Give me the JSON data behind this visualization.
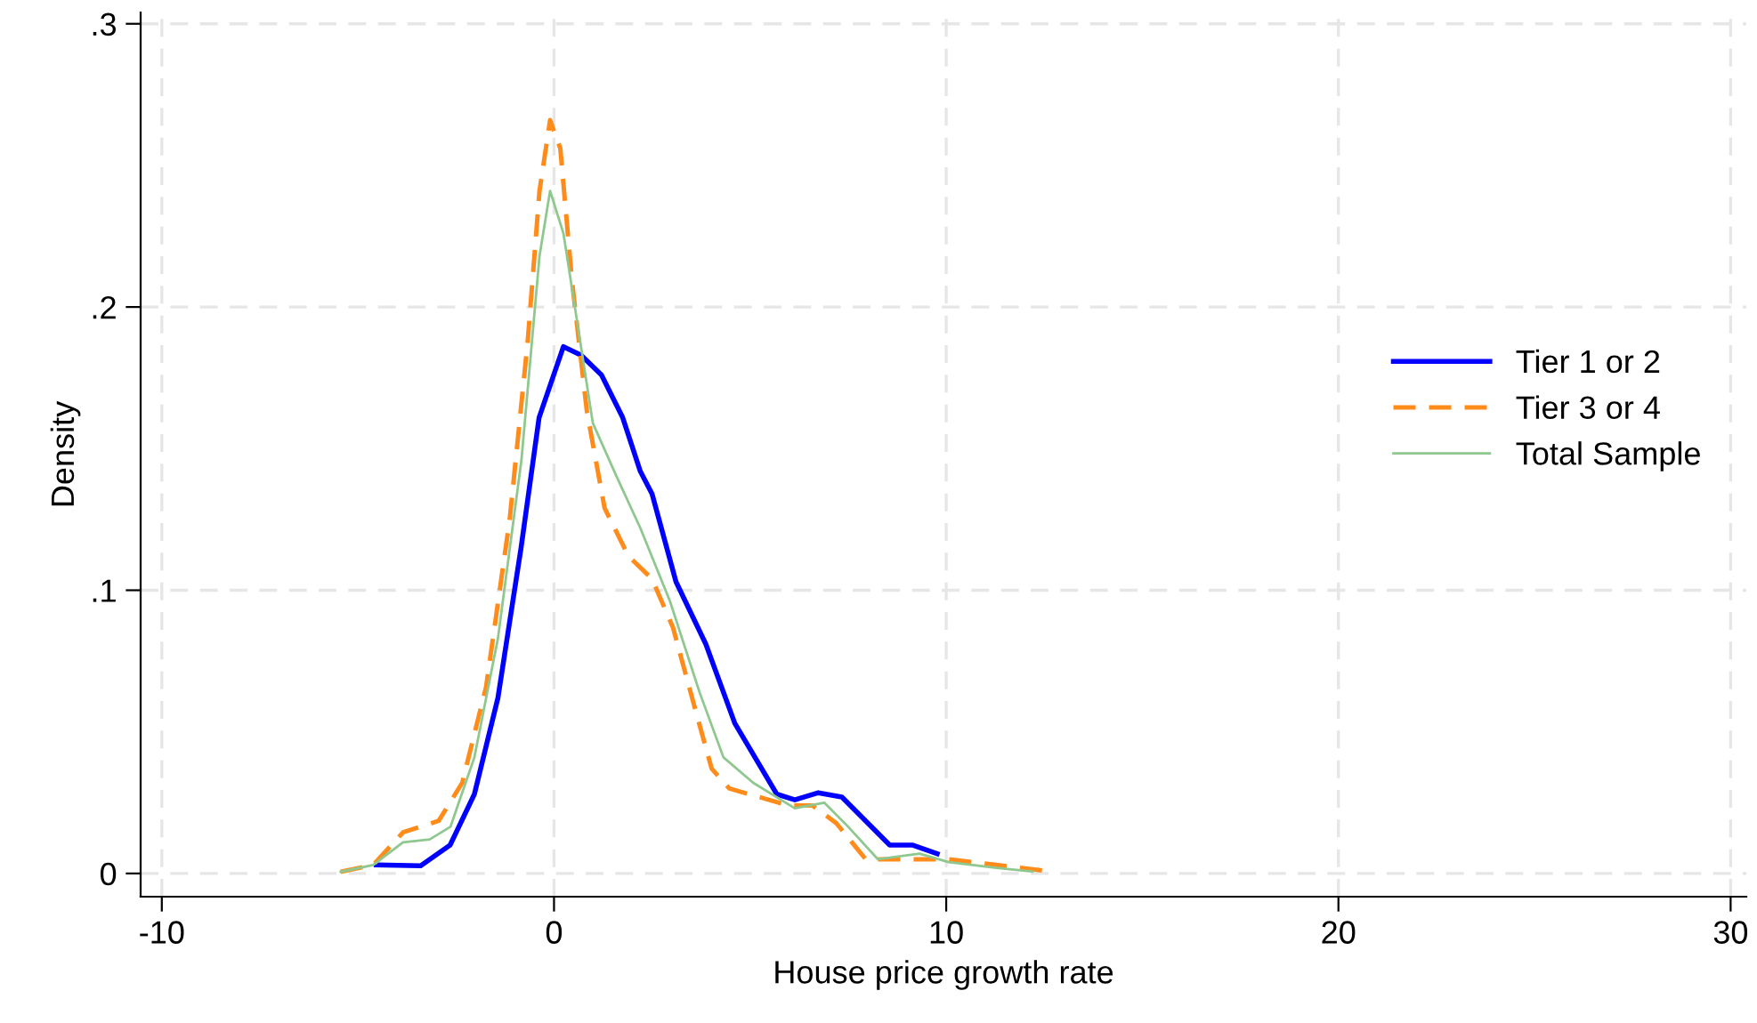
{
  "chart_data": {
    "type": "line",
    "xlabel": "House price growth rate",
    "ylabel": "Density",
    "xlim": [
      -10.54,
      30.4
    ],
    "ylim": [
      -0.0082,
      0.304
    ],
    "xticks": [
      -10,
      0,
      10,
      20,
      30
    ],
    "yticks": [
      {
        "value": 0,
        "label": "0"
      },
      {
        "value": 0.1,
        "label": ".1"
      },
      {
        "value": 0.2,
        "label": ".2"
      },
      {
        "value": 0.3,
        "label": ".3"
      }
    ],
    "grid": true,
    "legend": "right",
    "marker": "none",
    "series": [
      {
        "name": "Tier 1 or 2",
        "color": "#0000ff",
        "line_style": "solid",
        "x": [
          -4.53,
          -3.4,
          -2.65,
          -2.03,
          -1.43,
          -0.84,
          -0.38,
          0.24,
          0.69,
          1.21,
          1.75,
          2.2,
          2.5,
          3.11,
          3.87,
          4.61,
          5.68,
          6.14,
          6.74,
          7.34,
          8.56,
          9.15,
          9.77
        ],
        "values": [
          0.003,
          0.0027,
          0.01,
          0.028,
          0.062,
          0.115,
          0.161,
          0.186,
          0.183,
          0.176,
          0.161,
          0.142,
          0.134,
          0.103,
          0.081,
          0.053,
          0.028,
          0.026,
          0.0285,
          0.027,
          0.01,
          0.01,
          0.007
        ]
      },
      {
        "name": "Tier 3 or 4",
        "color": "#ff8c1a",
        "line_style": "dashed",
        "x": [
          -5.44,
          -4.61,
          -3.85,
          -2.94,
          -2.34,
          -1.73,
          -1.13,
          -0.67,
          -0.37,
          -0.1,
          0.16,
          0.46,
          0.84,
          1.29,
          1.9,
          2.5,
          2.81,
          3.03,
          3.56,
          4.02,
          4.47,
          5.98,
          6.59,
          7.2,
          7.95,
          8.86,
          10.06,
          11.28,
          12.5
        ],
        "values": [
          0.0006,
          0.003,
          0.0145,
          0.0186,
          0.032,
          0.066,
          0.125,
          0.188,
          0.241,
          0.266,
          0.256,
          0.209,
          0.163,
          0.129,
          0.112,
          0.104,
          0.094,
          0.087,
          0.06,
          0.037,
          0.03,
          0.024,
          0.024,
          0.0177,
          0.005,
          0.005,
          0.005,
          0.003,
          0.001
        ]
      },
      {
        "name": "Total Sample",
        "color": "#8fc88f",
        "line_style": "solid",
        "x": [
          -5.44,
          -4.61,
          -3.85,
          -3.17,
          -2.64,
          -2.03,
          -1.43,
          -0.83,
          -0.37,
          -0.1,
          0.24,
          0.61,
          0.99,
          1.6,
          2.2,
          2.96,
          3.71,
          4.32,
          5.08,
          6.14,
          6.89,
          7.5,
          8.26,
          9.32,
          10.06,
          11.28,
          12.2
        ],
        "values": [
          0.0006,
          0.003,
          0.011,
          0.012,
          0.0165,
          0.041,
          0.083,
          0.146,
          0.218,
          0.241,
          0.226,
          0.193,
          0.159,
          0.14,
          0.122,
          0.096,
          0.064,
          0.041,
          0.032,
          0.023,
          0.025,
          0.0165,
          0.005,
          0.007,
          0.004,
          0.002,
          0.0007
        ]
      }
    ]
  }
}
